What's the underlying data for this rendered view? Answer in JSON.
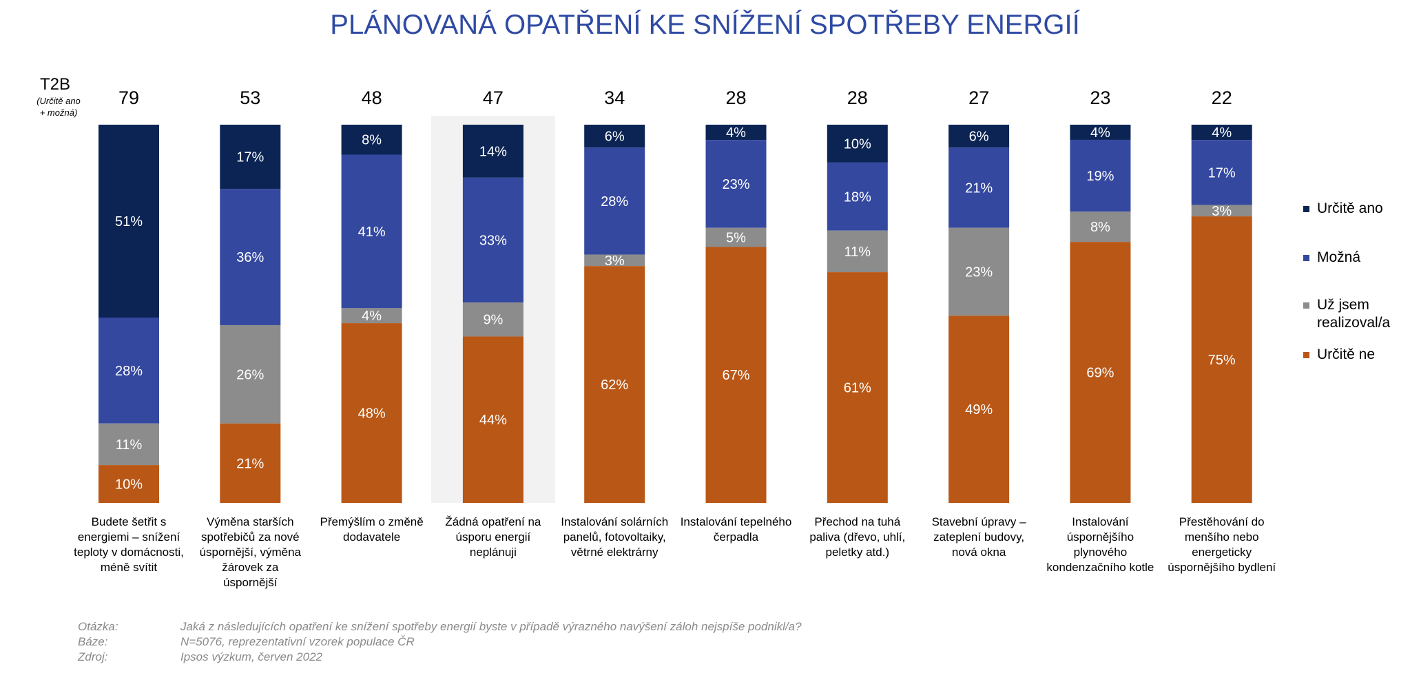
{
  "title": "PLÁNOVANÁ OPATŘENÍ KE SNÍŽENÍ SPOTŘEBY ENERGIÍ",
  "t2b_label": "T2B",
  "t2b_sublabel_1": "(Určitě ano",
  "t2b_sublabel_2": "+ možná)",
  "colors": {
    "urcite_ano": "#0B2454",
    "mozna": "#3448A0",
    "uz_jsem": "#8C8C8C",
    "urcite_ne": "#B95716",
    "highlight": "#F2F2F2"
  },
  "legend": [
    {
      "key": "urcite_ano",
      "lines": [
        "Určitě ano"
      ]
    },
    {
      "key": "mozna",
      "lines": [
        "Možná"
      ]
    },
    {
      "key": "uz_jsem",
      "lines": [
        "Už jsem",
        "realizoval/a"
      ]
    },
    {
      "key": "urcite_ne",
      "lines": [
        "Určitě ne"
      ]
    }
  ],
  "chart_data": {
    "type": "bar",
    "stacked": true,
    "highlighted_category_index": 3,
    "categories": [
      [
        "Budete šetřit s",
        "energiemi – snížení",
        "teploty v domácnosti,",
        "méně svítit"
      ],
      [
        "Výměna starších",
        "spotřebičů za nové",
        "úspornější, výměna",
        "žárovek za",
        "úspornější"
      ],
      [
        "Přemýšlím o změně",
        "dodavatele"
      ],
      [
        "Žádná opatření na",
        "úsporu energií",
        "neplánuji"
      ],
      [
        "Instalování solárních",
        "panelů, fotovoltaiky,",
        "větrné elektrárny"
      ],
      [
        "Instalování tepelného",
        "čerpadla"
      ],
      [
        "Přechod na tuhá",
        "paliva (dřevo, uhlí,",
        "peletky atd.)"
      ],
      [
        "Stavební úpravy –",
        "zateplení budovy,",
        "nová okna"
      ],
      [
        "Instalování",
        "úspornějšího",
        "plynového",
        "kondenzačního kotle"
      ],
      [
        "Přestěhování do",
        "menšího nebo",
        "energeticky",
        "úspornějšího bydlení"
      ]
    ],
    "t2b": [
      79,
      53,
      48,
      47,
      34,
      28,
      28,
      27,
      23,
      22
    ],
    "series": [
      {
        "key": "urcite_ano",
        "name": "Určitě ano",
        "values": [
          51,
          17,
          8,
          14,
          6,
          4,
          10,
          6,
          4,
          4
        ]
      },
      {
        "key": "mozna",
        "name": "Možná",
        "values": [
          28,
          36,
          41,
          33,
          28,
          23,
          18,
          21,
          19,
          17
        ]
      },
      {
        "key": "uz_jsem",
        "name": "Už jsem realizoval/a",
        "values": [
          11,
          26,
          4,
          9,
          3,
          5,
          11,
          23,
          8,
          3
        ]
      },
      {
        "key": "urcite_ne",
        "name": "Určitě ne",
        "values": [
          10,
          21,
          48,
          44,
          62,
          67,
          61,
          49,
          69,
          75
        ]
      }
    ],
    "value_suffix": "%",
    "ylim": [
      0,
      100
    ]
  },
  "footnote": {
    "otazka_label": "Otázka:",
    "otazka_text": "Jaká z následujících opatření ke snížení spotřeby energií byste v případě výrazného navýšení záloh nejspíše podnikl/a?",
    "baze_label": "Báze:",
    "baze_text": "N=5076, reprezentativní vzorek populace ČR",
    "zdroj_label": "Zdroj:",
    "zdroj_text": "Ipsos výzkum, červen 2022"
  }
}
